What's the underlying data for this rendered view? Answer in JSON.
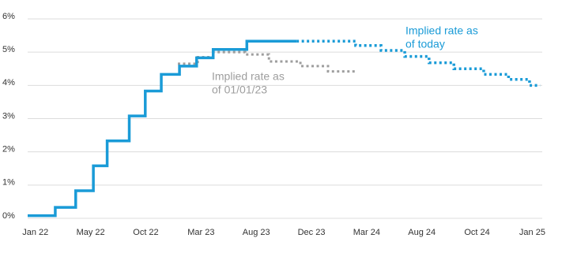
{
  "chart_data": {
    "type": "line",
    "ylim": [
      0,
      6
    ],
    "yticks": [
      {
        "value": 0,
        "label": "0%"
      },
      {
        "value": 1,
        "label": "1%"
      },
      {
        "value": 2,
        "label": "2%"
      },
      {
        "value": 3,
        "label": "3%"
      },
      {
        "value": 4,
        "label": "4%"
      },
      {
        "value": 5,
        "label": "5%"
      },
      {
        "value": 6,
        "label": "6%"
      }
    ],
    "xlim": [
      -0.14,
      9.18
    ],
    "xticks": [
      {
        "value": 0,
        "label": "Jan 22"
      },
      {
        "value": 1,
        "label": "May 22"
      },
      {
        "value": 2,
        "label": "Oct 22"
      },
      {
        "value": 3,
        "label": "Mar 23"
      },
      {
        "value": 4,
        "label": "Aug 23"
      },
      {
        "value": 5,
        "label": "Dec 23"
      },
      {
        "value": 6,
        "label": "Mar 24"
      },
      {
        "value": 7,
        "label": "Aug 24"
      },
      {
        "value": 8,
        "label": "Oct 24"
      },
      {
        "value": 9,
        "label": "Jan 25"
      }
    ],
    "grid": true,
    "series": [
      {
        "color": "#5b5b5b",
        "style": "solid",
        "color_light": "#9e9e9e",
        "x": [
          2.58,
          2.94,
          2.94,
          3.22,
          3.22,
          3.8,
          3.8,
          4.23,
          4.23,
          4.8,
          4.8,
          5.3,
          5.3,
          5.83
        ],
        "values": [
          4.65,
          4.65,
          4.85,
          4.85,
          5.0,
          5.0,
          4.93,
          4.93,
          4.72,
          4.72,
          4.58,
          4.58,
          4.42,
          4.42
        ]
      },
      {
        "color": "#1a9bd7",
        "style": "solid",
        "x": [
          -0.14,
          0.36,
          0.36,
          0.73,
          0.73,
          1.05,
          1.05,
          1.3,
          1.3,
          1.7,
          1.7,
          1.99,
          1.99,
          2.28,
          2.28,
          2.61,
          2.61,
          2.92,
          2.92,
          3.22,
          3.22,
          3.83,
          3.83,
          4.73
        ],
        "values": [
          0.08,
          0.08,
          0.33,
          0.33,
          0.83,
          0.83,
          1.58,
          1.58,
          2.33,
          2.33,
          3.08,
          3.08,
          3.83,
          3.83,
          4.33,
          4.33,
          4.58,
          4.58,
          4.83,
          4.83,
          5.08,
          5.08,
          5.33,
          5.33
        ]
      },
      {
        "color": "#1a9bd7",
        "style": "dotted",
        "x": [
          4.73,
          5.8,
          5.8,
          6.26,
          6.26,
          6.69,
          6.69,
          7.13,
          7.13,
          7.58,
          7.58,
          8.12,
          8.12,
          8.57,
          8.57,
          8.95,
          8.95,
          9.14
        ],
        "values": [
          5.33,
          5.33,
          5.2,
          5.2,
          5.05,
          5.05,
          4.87,
          4.87,
          4.68,
          4.68,
          4.5,
          4.5,
          4.33,
          4.33,
          4.18,
          4.18,
          4.0,
          4.0
        ]
      }
    ],
    "annotations": [
      {
        "lines": [
          "Implied rate as",
          "of today"
        ],
        "color": "#1a9bd7"
      },
      {
        "lines": [
          "Implied rate as",
          "of 01/01/23"
        ],
        "color": "#9e9e9e"
      }
    ]
  }
}
